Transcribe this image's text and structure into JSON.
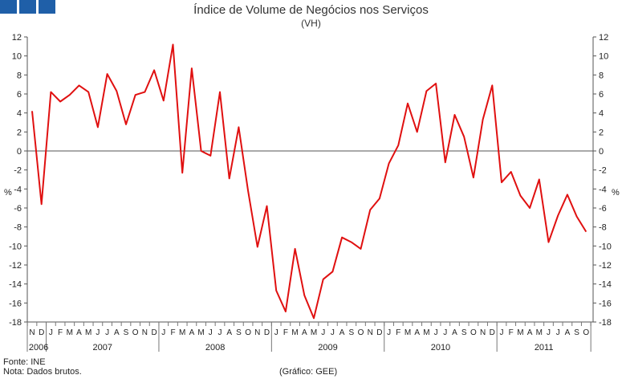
{
  "chart_data": {
    "type": "line",
    "title": "Índice de Volume de Negócios nos Serviços",
    "subtitle": "(VH)",
    "ylabel_left": "%",
    "ylabel_right": "%",
    "ylim": [
      -18,
      12
    ],
    "yticks": [
      12,
      10,
      8,
      6,
      4,
      2,
      0,
      -2,
      -4,
      -6,
      -8,
      -10,
      -12,
      -14,
      -16,
      -18
    ],
    "grid": false,
    "legend": "none",
    "line_color": "#e01010",
    "x": [
      "2006-11",
      "2006-12",
      "2007-01",
      "2007-02",
      "2007-03",
      "2007-04",
      "2007-05",
      "2007-06",
      "2007-07",
      "2007-08",
      "2007-09",
      "2007-10",
      "2007-11",
      "2007-12",
      "2008-01",
      "2008-02",
      "2008-03",
      "2008-04",
      "2008-05",
      "2008-06",
      "2008-07",
      "2008-08",
      "2008-09",
      "2008-10",
      "2008-11",
      "2008-12",
      "2009-01",
      "2009-02",
      "2009-03",
      "2009-04",
      "2009-05",
      "2009-06",
      "2009-07",
      "2009-08",
      "2009-09",
      "2009-10",
      "2009-11",
      "2009-12",
      "2010-01",
      "2010-02",
      "2010-03",
      "2010-04",
      "2010-05",
      "2010-06",
      "2010-07",
      "2010-08",
      "2010-09",
      "2010-10",
      "2010-11",
      "2010-12",
      "2011-01",
      "2011-02",
      "2011-03",
      "2011-04",
      "2011-05",
      "2011-06",
      "2011-07",
      "2011-08",
      "2011-09",
      "2011-10"
    ],
    "month_labels": [
      "N",
      "D",
      "J",
      "F",
      "M",
      "A",
      "M",
      "J",
      "J",
      "A",
      "S",
      "O",
      "N",
      "D",
      "J",
      "F",
      "M",
      "A",
      "M",
      "J",
      "J",
      "A",
      "S",
      "O",
      "N",
      "D",
      "J",
      "F",
      "M",
      "A",
      "M",
      "J",
      "J",
      "A",
      "S",
      "O",
      "N",
      "D",
      "J",
      "F",
      "M",
      "A",
      "M",
      "J",
      "J",
      "A",
      "S",
      "O",
      "N",
      "D",
      "J",
      "F",
      "M",
      "A",
      "M",
      "J",
      "J",
      "A",
      "S",
      "O"
    ],
    "years": [
      {
        "label": "2006",
        "start": 0,
        "count": 2
      },
      {
        "label": "2007",
        "start": 2,
        "count": 12
      },
      {
        "label": "2008",
        "start": 14,
        "count": 12
      },
      {
        "label": "2009",
        "start": 26,
        "count": 12
      },
      {
        "label": "2010",
        "start": 38,
        "count": 12
      },
      {
        "label": "2011",
        "start": 50,
        "count": 10
      }
    ],
    "series": [
      {
        "values": [
          4.2,
          -5.6,
          6.2,
          5.2,
          5.9,
          6.9,
          6.2,
          2.5,
          8.1,
          6.3,
          2.8,
          5.9,
          6.2,
          8.5,
          5.3,
          11.2,
          -2.3,
          8.7,
          0,
          -0.5,
          6.2,
          -2.9,
          2.5,
          -4.2,
          -10.1,
          -5.8,
          -14.7,
          -16.9,
          -10.3,
          -15.2,
          -17.6,
          -13.5,
          -12.7,
          -9.1,
          -9.6,
          -10.3,
          -6.2,
          -5.0,
          -1.3,
          0.6,
          5.0,
          2.0,
          6.3,
          7.1,
          -1.2,
          3.8,
          1.5,
          -2.8,
          3.3,
          6.9,
          -3.3,
          -2.2,
          -4.7,
          -6.0,
          -3.0,
          -9.6,
          -6.8,
          -4.6,
          -6.9,
          -8.5
        ]
      }
    ]
  },
  "footer": {
    "source": "Fonte: INE",
    "note": "Nota: Dados brutos.",
    "credit": "(Gráfico: GEE)"
  }
}
